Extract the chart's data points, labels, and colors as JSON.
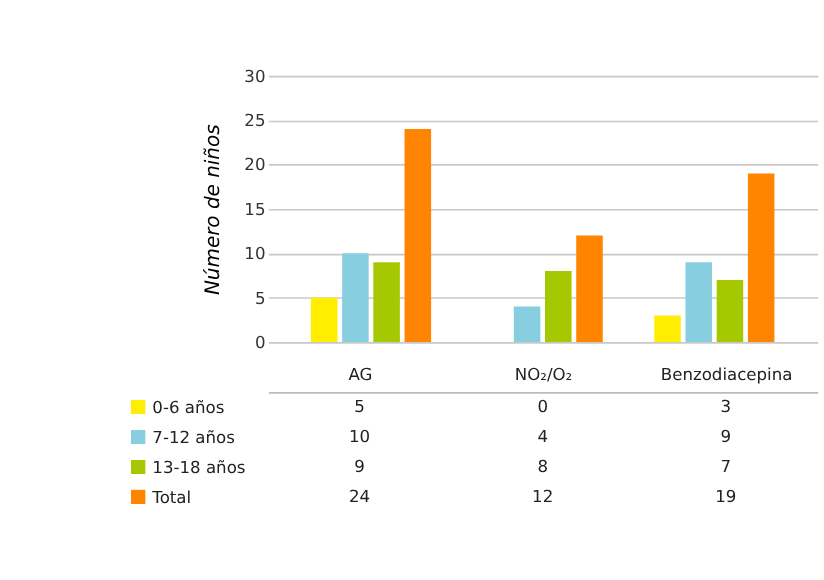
{
  "chart_data": {
    "type": "bar",
    "ylabel": "Número de niños",
    "categories": [
      "AG",
      "NO₂/O₂",
      "Benzodiacepina"
    ],
    "series": [
      {
        "name": "0-6 años",
        "color": "#ffee00",
        "values": [
          5,
          0,
          3
        ]
      },
      {
        "name": "7-12 años",
        "color": "#87cee0",
        "values": [
          10,
          4,
          9
        ]
      },
      {
        "name": "13-18 años",
        "color": "#a5c800",
        "values": [
          9,
          8,
          7
        ]
      },
      {
        "name": "Total",
        "color": "#ff8400",
        "values": [
          24,
          12,
          19
        ]
      }
    ],
    "ylim": [
      0,
      30
    ],
    "yticks": [
      0,
      5,
      10,
      15,
      20,
      25,
      30
    ],
    "grid": "y",
    "data_labels": true,
    "legend": "bottom left",
    "tick_labels": "y"
  }
}
